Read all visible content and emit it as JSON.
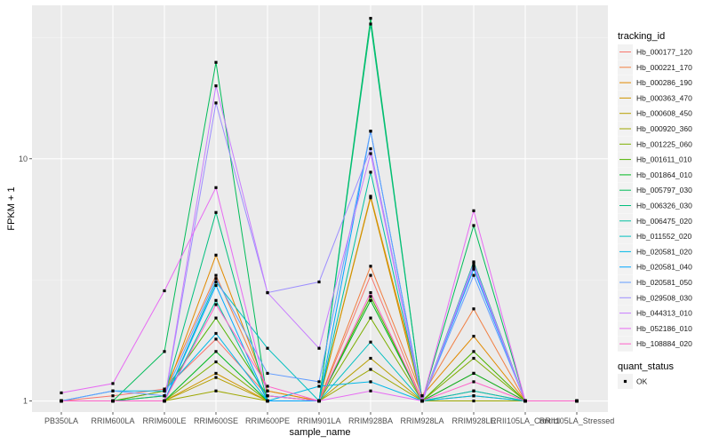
{
  "chart_data": {
    "type": "line",
    "xlabel": "sample_name",
    "ylabel": "FPKM + 1",
    "y_scale": "log10",
    "ylim": [
      0.9,
      43
    ],
    "y_ticks": [
      1,
      10
    ],
    "y_tick_labels": [
      "1",
      "10"
    ],
    "grid": true,
    "legend_position": "right",
    "categories": [
      "PB350LA",
      "RRIM600LA",
      "RRIM600LE",
      "RRIM600SE",
      "RRIM600PE",
      "RRIM901LA",
      "RRIM928BA",
      "RRIM928LA",
      "RRIM928LE",
      "RRII105LA_Control",
      "RRII105LA_Stressed"
    ],
    "legend_title": "tracking_id",
    "series": [
      {
        "name": "Hb_000177_120",
        "color": "#F8766D",
        "values": [
          1.0,
          1.05,
          1.12,
          1.8,
          1.05,
          1.0,
          3.3,
          1.0,
          1.3,
          1.0,
          1.0
        ]
      },
      {
        "name": "Hb_000221_170",
        "color": "#F17F42",
        "values": [
          1.0,
          1.0,
          1.1,
          3.3,
          1.1,
          1.0,
          3.6,
          1.05,
          2.4,
          1.0,
          1.0
        ]
      },
      {
        "name": "Hb_000286_190",
        "color": "#E18A00",
        "values": [
          1.0,
          1.0,
          1.05,
          4.0,
          1.1,
          1.0,
          7.0,
          1.05,
          1.85,
          1.0,
          1.0
        ]
      },
      {
        "name": "Hb_000363_470",
        "color": "#CE9500",
        "values": [
          1.0,
          1.0,
          1.0,
          1.3,
          1.0,
          1.0,
          6.9,
          1.0,
          1.1,
          1.0,
          1.0
        ]
      },
      {
        "name": "Hb_000608_450",
        "color": "#B79F00",
        "values": [
          1.0,
          1.0,
          1.0,
          1.25,
          1.0,
          1.0,
          1.5,
          1.0,
          1.05,
          1.0,
          1.0
        ]
      },
      {
        "name": "Hb_000920_360",
        "color": "#9DA700",
        "values": [
          1.0,
          1.0,
          1.0,
          1.1,
          1.0,
          1.0,
          1.35,
          1.0,
          1.0,
          1.0,
          1.0
        ]
      },
      {
        "name": "Hb_001225_060",
        "color": "#7CAE00",
        "values": [
          1.0,
          1.0,
          1.0,
          1.45,
          1.0,
          1.0,
          2.2,
          1.0,
          1.5,
          1.0,
          1.0
        ]
      },
      {
        "name": "Hb_001611_010",
        "color": "#4FB300",
        "values": [
          1.0,
          1.0,
          1.1,
          2.2,
          1.05,
          1.0,
          2.7,
          1.0,
          1.6,
          1.0,
          1.0
        ]
      },
      {
        "name": "Hb_001864_010",
        "color": "#00B81F",
        "values": [
          1.0,
          1.0,
          1.0,
          1.6,
          1.0,
          1.0,
          2.6,
          1.0,
          1.3,
          1.0,
          1.0
        ]
      },
      {
        "name": "Hb_005797_030",
        "color": "#00BC59",
        "values": [
          1.0,
          1.0,
          1.6,
          25.0,
          1.0,
          1.0,
          38.0,
          1.0,
          5.3,
          1.0,
          1.0
        ]
      },
      {
        "name": "Hb_006326_030",
        "color": "#00BF7D",
        "values": [
          1.0,
          1.0,
          1.05,
          6.0,
          1.0,
          1.0,
          36.0,
          1.0,
          3.75,
          1.0,
          1.0
        ]
      },
      {
        "name": "Hb_006475_020",
        "color": "#00C0A0",
        "values": [
          1.0,
          1.0,
          1.0,
          2.6,
          1.0,
          1.0,
          8.8,
          1.0,
          3.6,
          1.0,
          1.0
        ]
      },
      {
        "name": "Hb_011552_020",
        "color": "#00BFC0",
        "values": [
          1.0,
          1.0,
          1.0,
          3.1,
          1.65,
          1.0,
          1.75,
          1.0,
          1.1,
          1.0,
          1.0
        ]
      },
      {
        "name": "Hb_020581_020",
        "color": "#00B8E7",
        "values": [
          1.0,
          1.1,
          1.1,
          1.9,
          1.0,
          1.15,
          1.2,
          1.0,
          1.05,
          1.0,
          1.0
        ]
      },
      {
        "name": "Hb_020581_040",
        "color": "#00A6FF",
        "values": [
          1.0,
          1.0,
          1.0,
          3.0,
          1.0,
          1.0,
          13.0,
          1.0,
          3.5,
          1.0,
          1.0
        ]
      },
      {
        "name": "Hb_020581_050",
        "color": "#619CFF",
        "values": [
          1.0,
          1.1,
          1.05,
          3.2,
          1.3,
          1.2,
          13.0,
          1.0,
          3.3,
          1.0,
          1.0
        ]
      },
      {
        "name": "Hb_029508_030",
        "color": "#9C8DFF",
        "values": [
          1.0,
          1.0,
          1.0,
          17.0,
          2.8,
          3.1,
          11.0,
          1.0,
          3.7,
          1.0,
          1.0
        ]
      },
      {
        "name": "Hb_044313_010",
        "color": "#C77CFF",
        "values": [
          1.0,
          1.0,
          1.0,
          20.0,
          2.8,
          1.65,
          10.5,
          1.0,
          3.6,
          1.0,
          1.0
        ]
      },
      {
        "name": "Hb_052186_010",
        "color": "#E76BF3",
        "values": [
          1.08,
          1.18,
          2.85,
          7.6,
          1.05,
          1.0,
          1.1,
          1.0,
          6.1,
          1.0,
          1.0
        ]
      },
      {
        "name": "Hb_108884_020",
        "color": "#FF61C9",
        "values": [
          1.0,
          1.0,
          1.0,
          2.5,
          1.15,
          1.0,
          2.8,
          1.0,
          1.2,
          1.0,
          1.0
        ]
      }
    ],
    "shape_legend_title": "quant_status",
    "shape_legend_items": [
      "OK"
    ]
  }
}
